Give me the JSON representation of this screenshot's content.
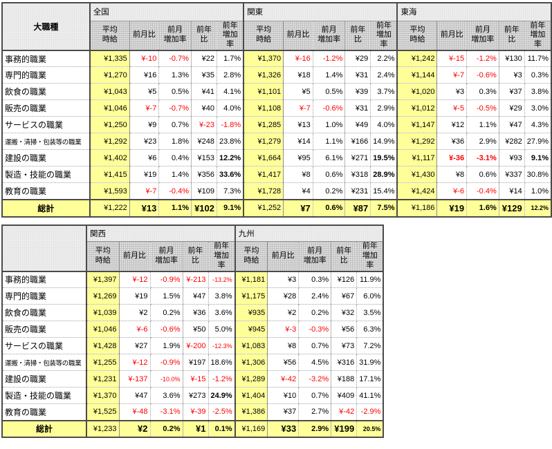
{
  "styles": {
    "highlight_yellow": "#ffff99",
    "header_gray": "#c1c1c1",
    "region_header_bg": "#f1f1f1",
    "negative_red": "#fe0000",
    "border_dark": "#4a4a4a"
  },
  "chart_data": {
    "type": "table",
    "title": "",
    "corner_header": "大職種",
    "columns_display": [
      "平均\n時給",
      "前月比",
      "前月\n増加率",
      "前年比",
      "前年\n増加率"
    ],
    "columns_meaning": [
      "平均時給",
      "前月比",
      "前月増加率",
      "前年比",
      "前年増加率"
    ],
    "occupations": [
      "事務的職業",
      "専門的職業",
      "飲食の職業",
      "販売の職業",
      "サービスの職業",
      "運搬・清掃・包装等の職業",
      "建設の職業",
      "製造・技能の職業",
      "教育の職業"
    ],
    "total_label": "総計",
    "tables": [
      {
        "corner": "大職種",
        "regions": [
          {
            "name": "全国",
            "rows": [
              [
                "¥1,335",
                {
                  "v": "¥-10",
                  "neg": 1
                },
                {
                  "v": "-0.7%",
                  "neg": 1
                },
                "¥22",
                "1.7%"
              ],
              [
                "¥1,270",
                "¥16",
                "1.3%",
                "¥35",
                "2.8%"
              ],
              [
                "¥1,043",
                "¥5",
                "0.5%",
                "¥41",
                "4.1%"
              ],
              [
                "¥1,046",
                {
                  "v": "¥-7",
                  "neg": 1
                },
                {
                  "v": "-0.7%",
                  "neg": 1
                },
                "¥40",
                "4.0%"
              ],
              [
                "¥1,250",
                "¥9",
                "0.7%",
                {
                  "v": "¥-23",
                  "neg": 1
                },
                {
                  "v": "-1.8%",
                  "neg": 1
                }
              ],
              [
                "¥1,292",
                "¥23",
                "1.8%",
                "¥248",
                "23.8%"
              ],
              [
                "¥1,402",
                "¥6",
                "0.4%",
                "¥153",
                {
                  "v": "12.2%",
                  "bold": 1
                }
              ],
              [
                "¥1,415",
                "¥19",
                "1.4%",
                "¥356",
                {
                  "v": "33.6%",
                  "bold": 1
                }
              ],
              [
                "¥1,593",
                {
                  "v": "¥-7",
                  "neg": 1
                },
                {
                  "v": "-0.4%",
                  "neg": 1
                },
                "¥109",
                "7.3%"
              ]
            ],
            "total": [
              "¥1,222",
              {
                "v": "¥13",
                "bold": 1,
                "big": 1
              },
              {
                "v": "1.1%",
                "bold": 1
              },
              {
                "v": "¥102",
                "bold": 1,
                "big": 1
              },
              {
                "v": "9.1%",
                "bold": 1
              }
            ]
          },
          {
            "name": "関東",
            "rows": [
              [
                "¥1,370",
                {
                  "v": "¥-16",
                  "neg": 1
                },
                {
                  "v": "-1.2%",
                  "neg": 1
                },
                "¥29",
                "2.2%"
              ],
              [
                "¥1,326",
                "¥18",
                "1.4%",
                "¥31",
                "2.4%"
              ],
              [
                "¥1,101",
                "¥5",
                "0.5%",
                "¥39",
                "3.7%"
              ],
              [
                "¥1,108",
                {
                  "v": "¥-7",
                  "neg": 1
                },
                {
                  "v": "-0.6%",
                  "neg": 1
                },
                "¥31",
                "2.9%"
              ],
              [
                "¥1,285",
                "¥13",
                "1.0%",
                "¥49",
                "4.0%"
              ],
              [
                "¥1,279",
                "¥14",
                "1.1%",
                "¥166",
                "14.9%"
              ],
              [
                "¥1,664",
                "¥95",
                "6.1%",
                "¥271",
                {
                  "v": "19.5%",
                  "bold": 1
                }
              ],
              [
                "¥1,417",
                "¥8",
                "0.6%",
                "¥318",
                {
                  "v": "28.9%",
                  "bold": 1
                }
              ],
              [
                "¥1,728",
                "¥4",
                "0.2%",
                "¥231",
                "15.4%"
              ]
            ],
            "total": [
              "¥1,252",
              {
                "v": "¥7",
                "bold": 1,
                "big": 1
              },
              {
                "v": "0.6%",
                "bold": 1
              },
              {
                "v": "¥87",
                "bold": 1,
                "big": 1
              },
              {
                "v": "7.5%",
                "bold": 1
              }
            ]
          },
          {
            "name": "東海",
            "rows": [
              [
                "¥1,242",
                {
                  "v": "¥-15",
                  "neg": 1
                },
                {
                  "v": "-1.2%",
                  "neg": 1
                },
                "¥130",
                "11.7%"
              ],
              [
                "¥1,144",
                {
                  "v": "¥-7",
                  "neg": 1
                },
                {
                  "v": "-0.6%",
                  "neg": 1
                },
                "¥3",
                "0.3%"
              ],
              [
                "¥1,020",
                "¥3",
                "0.3%",
                "¥37",
                "3.8%"
              ],
              [
                "¥1,012",
                {
                  "v": "¥-5",
                  "neg": 1
                },
                {
                  "v": "-0.5%",
                  "neg": 1
                },
                "¥29",
                "3.0%"
              ],
              [
                "¥1,147",
                "¥12",
                "1.1%",
                "¥47",
                "4.3%"
              ],
              [
                "¥1,292",
                "¥36",
                "2.9%",
                "¥282",
                "27.9%"
              ],
              [
                "¥1,117",
                {
                  "v": "¥-36",
                  "neg": 1,
                  "bold": 1
                },
                {
                  "v": "-3.1%",
                  "neg": 1,
                  "bold": 1
                },
                "¥93",
                {
                  "v": "9.1%",
                  "bold": 1
                }
              ],
              [
                "¥1,430",
                "¥8",
                "0.6%",
                "¥337",
                "30.8%"
              ],
              [
                "¥1,424",
                {
                  "v": "¥-6",
                  "neg": 1
                },
                {
                  "v": "-0.4%",
                  "neg": 1
                },
                "¥14",
                "1.0%"
              ]
            ],
            "total": [
              "¥1,186",
              {
                "v": "¥19",
                "bold": 1,
                "big": 1
              },
              {
                "v": "1.6%",
                "bold": 1
              },
              {
                "v": "¥129",
                "bold": 1,
                "big": 1
              },
              {
                "v": "12.2%",
                "bold": 1,
                "small": 1
              }
            ]
          }
        ]
      },
      {
        "corner": "",
        "regions": [
          {
            "name": "関西",
            "rows": [
              [
                "¥1,397",
                {
                  "v": "¥-12",
                  "neg": 1
                },
                {
                  "v": "-0.9%",
                  "neg": 1
                },
                {
                  "v": "¥-213",
                  "neg": 1
                },
                {
                  "v": "-13.2%",
                  "neg": 1,
                  "small": 1
                }
              ],
              [
                "¥1,269",
                "¥19",
                "1.5%",
                "¥47",
                "3.8%"
              ],
              [
                "¥1,039",
                "¥2",
                "0.2%",
                "¥36",
                "3.6%"
              ],
              [
                "¥1,046",
                {
                  "v": "¥-6",
                  "neg": 1
                },
                {
                  "v": "-0.6%",
                  "neg": 1
                },
                "¥50",
                "5.0%"
              ],
              [
                "¥1,428",
                "¥27",
                "1.9%",
                {
                  "v": "¥-200",
                  "neg": 1
                },
                {
                  "v": "-12.3%",
                  "neg": 1,
                  "small": 1
                }
              ],
              [
                "¥1,255",
                {
                  "v": "¥-12",
                  "neg": 1
                },
                {
                  "v": "-0.9%",
                  "neg": 1
                },
                "¥197",
                "18.6%"
              ],
              [
                "¥1,231",
                {
                  "v": "¥-137",
                  "neg": 1
                },
                {
                  "v": "-10.0%",
                  "neg": 1,
                  "small": 1
                },
                {
                  "v": "¥-15",
                  "neg": 1
                },
                {
                  "v": "-1.2%",
                  "neg": 1
                }
              ],
              [
                "¥1,370",
                "¥47",
                "3.6%",
                "¥273",
                {
                  "v": "24.9%",
                  "bold": 1
                }
              ],
              [
                "¥1,525",
                {
                  "v": "¥-48",
                  "neg": 1
                },
                {
                  "v": "-3.1%",
                  "neg": 1
                },
                {
                  "v": "¥-39",
                  "neg": 1
                },
                {
                  "v": "-2.5%",
                  "neg": 1
                }
              ]
            ],
            "total": [
              "¥1,233",
              {
                "v": "¥2",
                "bold": 1,
                "big": 1
              },
              {
                "v": "0.2%",
                "bold": 1
              },
              {
                "v": "¥1",
                "bold": 1,
                "big": 1
              },
              {
                "v": "0.1%",
                "bold": 1
              }
            ]
          },
          {
            "name": "九州",
            "rows": [
              [
                "¥1,181",
                "¥3",
                "0.3%",
                "¥126",
                "11.9%"
              ],
              [
                "¥1,175",
                "¥28",
                "2.4%",
                "¥67",
                "6.0%"
              ],
              [
                "¥935",
                "¥2",
                "0.2%",
                "¥32",
                "3.5%"
              ],
              [
                "¥945",
                {
                  "v": "¥-3",
                  "neg": 1
                },
                {
                  "v": "-0.3%",
                  "neg": 1
                },
                "¥56",
                "6.3%"
              ],
              [
                "¥1,083",
                "¥8",
                "0.7%",
                "¥73",
                "7.2%"
              ],
              [
                "¥1,306",
                "¥56",
                "4.5%",
                "¥316",
                "31.9%"
              ],
              [
                "¥1,289",
                {
                  "v": "¥-42",
                  "neg": 1
                },
                {
                  "v": "-3.2%",
                  "neg": 1
                },
                "¥188",
                "17.1%"
              ],
              [
                "¥1,404",
                "¥10",
                "0.7%",
                "¥409",
                "41.1%"
              ],
              [
                "¥1,386",
                "¥37",
                "2.7%",
                {
                  "v": "¥-42",
                  "neg": 1
                },
                {
                  "v": "-2.9%",
                  "neg": 1
                }
              ]
            ],
            "total": [
              "¥1,169",
              {
                "v": "¥33",
                "bold": 1,
                "big": 1
              },
              {
                "v": "2.9%",
                "bold": 1
              },
              {
                "v": "¥199",
                "bold": 1,
                "big": 1
              },
              {
                "v": "20.5%",
                "bold": 1,
                "small": 1
              }
            ]
          }
        ]
      }
    ]
  }
}
